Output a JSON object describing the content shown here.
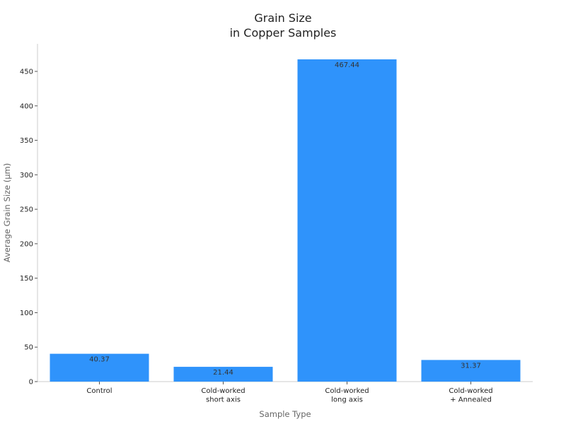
{
  "chart_data": {
    "type": "bar",
    "title": "Grain Size",
    "subtitle": "in Copper Samples",
    "xlabel": "Sample Type",
    "ylabel": "Average Grain Size (μm)",
    "categories": [
      [
        "Control"
      ],
      [
        "Cold-worked",
        "short axis"
      ],
      [
        "Cold-worked",
        "long axis"
      ],
      [
        "Cold-worked",
        "+ Annealed"
      ]
    ],
    "values": [
      40.37,
      21.44,
      467.44,
      31.37
    ],
    "value_labels": [
      "40.37",
      "21.44",
      "467.44",
      "31.37"
    ],
    "ylim": [
      0,
      490
    ],
    "yticks": [
      0,
      50,
      100,
      150,
      200,
      250,
      300,
      350,
      400,
      450
    ],
    "bar_color": "#2f93fb",
    "grid": false,
    "legend": "none"
  }
}
